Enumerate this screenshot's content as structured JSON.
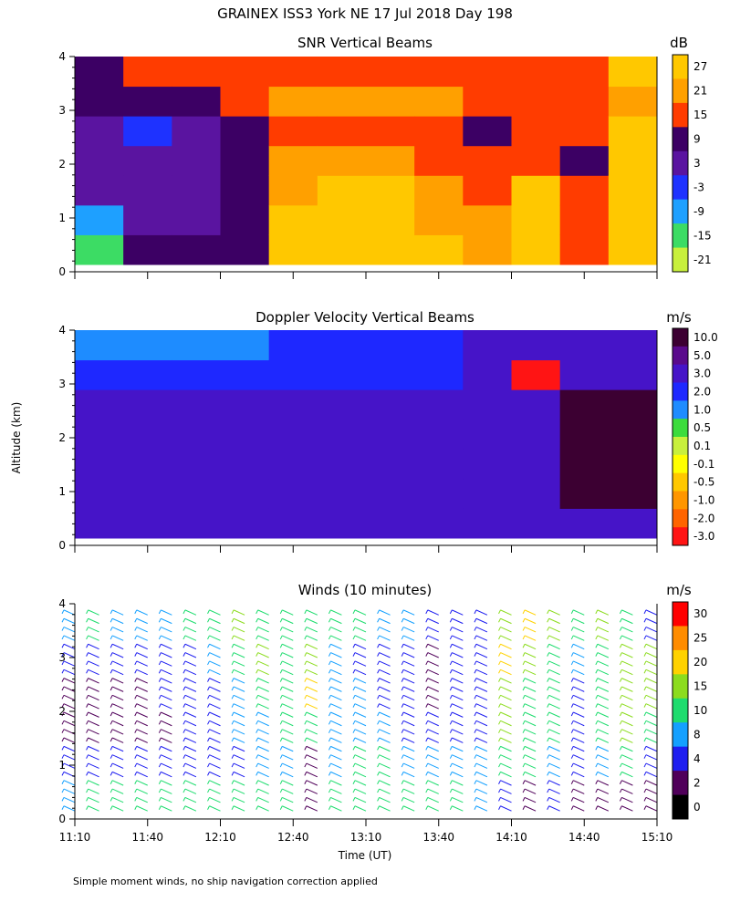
{
  "figure": {
    "title": "GRAINEX ISS3 York NE  17 Jul 2018 Day 198",
    "footnote": "Simple moment winds, no ship navigation correction applied",
    "ylabel": "Altitude (km)",
    "xlabel": "Time (UT)",
    "x_ticks": [
      "11:10",
      "11:40",
      "12:10",
      "12:40",
      "13:10",
      "13:40",
      "14:10",
      "14:40",
      "15:10"
    ],
    "y_ticks": [
      "0",
      "1",
      "2",
      "3",
      "4"
    ]
  },
  "chart_data": [
    {
      "type": "heatmap",
      "title": "SNR Vertical Beams",
      "colorbar_title": "dB",
      "colorbar_labels": [
        "27",
        "21",
        "15",
        "9",
        "3",
        "-3",
        "-9",
        "-15",
        "-21"
      ],
      "colorbar_colors": [
        "#ffc800",
        "#ffa000",
        "#ff3c00",
        "#3c0064",
        "#5a14a0",
        "#1e32ff",
        "#1ea0ff",
        "#3cdc64",
        "#c8f03c"
      ],
      "xlim": [
        "11:10",
        "15:10"
      ],
      "ylim": [
        0,
        4
      ],
      "columns": [
        {
          "t": 0,
          "v": [
            -15,
            -9,
            3,
            3,
            3,
            9,
            9
          ]
        },
        {
          "t": 20,
          "v": [
            9,
            3,
            3,
            3,
            -3,
            9,
            15
          ]
        },
        {
          "t": 40,
          "v": [
            9,
            3,
            3,
            3,
            3,
            9,
            15
          ]
        },
        {
          "t": 60,
          "v": [
            9,
            9,
            9,
            9,
            9,
            15,
            15
          ]
        },
        {
          "t": 80,
          "v": [
            27,
            27,
            21,
            21,
            15,
            21,
            15
          ]
        },
        {
          "t": 100,
          "v": [
            27,
            27,
            27,
            21,
            15,
            21,
            15
          ]
        },
        {
          "t": 120,
          "v": [
            27,
            27,
            27,
            21,
            15,
            21,
            15
          ]
        },
        {
          "t": 140,
          "v": [
            27,
            21,
            21,
            15,
            15,
            21,
            15
          ]
        },
        {
          "t": 160,
          "v": [
            21,
            21,
            15,
            15,
            9,
            15,
            15
          ]
        },
        {
          "t": 180,
          "v": [
            27,
            27,
            27,
            15,
            15,
            15,
            15
          ]
        },
        {
          "t": 200,
          "v": [
            15,
            15,
            15,
            9,
            15,
            15,
            15
          ]
        },
        {
          "t": 220,
          "v": [
            27,
            27,
            27,
            27,
            27,
            21,
            27
          ]
        },
        {
          "t": 240,
          "v": [
            27,
            27,
            27,
            27,
            27,
            27,
            27
          ]
        }
      ]
    },
    {
      "type": "heatmap",
      "title": "Doppler Velocity Vertical Beams",
      "colorbar_title": "m/s",
      "colorbar_labels": [
        "10.0",
        "5.0",
        "3.0",
        "2.0",
        "1.0",
        "0.5",
        "0.1",
        "-0.1",
        "-0.5",
        "-1.0",
        "-2.0",
        "-3.0"
      ],
      "colorbar_colors": [
        "#3c0032",
        "#5a0a8c",
        "#4614c8",
        "#1e28ff",
        "#1e8cff",
        "#3cdc3c",
        "#c8f03c",
        "#ffff00",
        "#ffc800",
        "#ff9600",
        "#ff6400",
        "#ff1414"
      ],
      "xlim": [
        "11:10",
        "15:10"
      ],
      "ylim": [
        0,
        4
      ],
      "columns": [
        {
          "t": 0,
          "v": [
            3.0,
            3.0,
            3.0,
            3.0,
            3.0,
            2.0,
            1.0
          ]
        },
        {
          "t": 40,
          "v": [
            3.0,
            3.0,
            3.0,
            3.0,
            3.0,
            2.0,
            1.0
          ]
        },
        {
          "t": 80,
          "v": [
            3.0,
            3.0,
            3.0,
            3.0,
            3.0,
            2.0,
            2.0
          ]
        },
        {
          "t": 120,
          "v": [
            3.0,
            3.0,
            3.0,
            3.0,
            3.0,
            2.0,
            2.0
          ]
        },
        {
          "t": 160,
          "v": [
            3.0,
            3.0,
            3.0,
            3.0,
            3.0,
            3.0,
            3.0
          ]
        },
        {
          "t": 180,
          "v": [
            3.0,
            3.0,
            3.0,
            3.0,
            3.0,
            -3.0,
            3.0
          ]
        },
        {
          "t": 200,
          "v": [
            3.0,
            10.0,
            10.0,
            10.0,
            10.0,
            3.0,
            3.0
          ]
        },
        {
          "t": 240,
          "v": [
            3.0,
            3.0,
            3.0,
            3.0,
            3.0,
            3.0,
            2.0
          ]
        }
      ]
    },
    {
      "type": "wind_barbs",
      "title": "Winds (10 minutes)",
      "colorbar_title": "m/s",
      "colorbar_labels": [
        "30",
        "25",
        "20",
        "15",
        "10",
        "8",
        "4",
        "2",
        "0"
      ],
      "colorbar_colors": [
        "#ff0000",
        "#ff8c00",
        "#ffd200",
        "#8cdc1e",
        "#1edc6e",
        "#14a0ff",
        "#1e1ef0",
        "#50005a",
        "#000000"
      ],
      "xlim": [
        "11:10",
        "15:10"
      ],
      "ylim": [
        0,
        4
      ],
      "profile_interval_minutes": 10,
      "profiles": [
        {
          "t": 0,
          "speed": [
            8,
            4,
            2,
            2,
            4,
            8
          ]
        },
        {
          "t": 10,
          "speed": [
            10,
            4,
            2,
            2,
            4,
            10
          ]
        },
        {
          "t": 20,
          "speed": [
            10,
            4,
            2,
            2,
            4,
            8
          ]
        },
        {
          "t": 30,
          "speed": [
            10,
            4,
            2,
            2,
            4,
            8
          ]
        },
        {
          "t": 40,
          "speed": [
            10,
            4,
            2,
            4,
            4,
            8
          ]
        },
        {
          "t": 50,
          "speed": [
            10,
            4,
            4,
            4,
            4,
            10
          ]
        },
        {
          "t": 60,
          "speed": [
            10,
            4,
            4,
            4,
            8,
            10
          ]
        },
        {
          "t": 70,
          "speed": [
            10,
            4,
            8,
            8,
            10,
            15
          ]
        },
        {
          "t": 80,
          "speed": [
            10,
            8,
            8,
            10,
            15,
            10
          ]
        },
        {
          "t": 90,
          "speed": [
            10,
            8,
            10,
            10,
            10,
            10
          ]
        },
        {
          "t": 100,
          "speed": [
            2,
            2,
            10,
            20,
            15,
            10
          ]
        },
        {
          "t": 110,
          "speed": [
            10,
            8,
            8,
            8,
            8,
            10
          ]
        },
        {
          "t": 120,
          "speed": [
            10,
            10,
            8,
            8,
            4,
            10
          ]
        },
        {
          "t": 130,
          "speed": [
            10,
            10,
            8,
            4,
            4,
            8
          ]
        },
        {
          "t": 140,
          "speed": [
            10,
            8,
            4,
            4,
            4,
            8
          ]
        },
        {
          "t": 150,
          "speed": [
            10,
            8,
            4,
            2,
            2,
            4
          ]
        },
        {
          "t": 160,
          "speed": [
            10,
            8,
            4,
            4,
            4,
            4
          ]
        },
        {
          "t": 170,
          "speed": [
            8,
            8,
            4,
            4,
            4,
            4
          ]
        },
        {
          "t": 180,
          "speed": [
            4,
            10,
            15,
            15,
            20,
            15
          ]
        },
        {
          "t": 190,
          "speed": [
            2,
            10,
            10,
            10,
            15,
            20
          ]
        },
        {
          "t": 200,
          "speed": [
            4,
            8,
            10,
            10,
            10,
            15
          ]
        },
        {
          "t": 210,
          "speed": [
            2,
            4,
            4,
            4,
            8,
            10
          ]
        },
        {
          "t": 220,
          "speed": [
            2,
            8,
            10,
            10,
            10,
            15
          ]
        },
        {
          "t": 230,
          "speed": [
            2,
            10,
            15,
            15,
            15,
            10
          ]
        },
        {
          "t": 240,
          "speed": [
            2,
            4,
            10,
            15,
            15,
            4
          ]
        }
      ]
    }
  ]
}
